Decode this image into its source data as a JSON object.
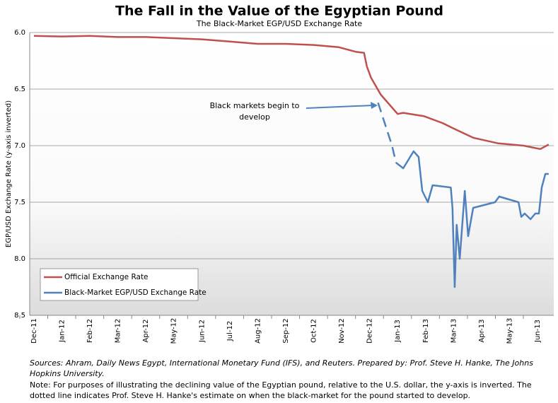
{
  "chart_data": {
    "type": "line",
    "title": "The Fall in the Value of the Egyptian Pound",
    "subtitle": "The Black-Market EGP/USD Exchange Rate",
    "y_label": "EGP/USD Exchange Rate (y-axis inverted)",
    "y_inverted": true,
    "grid": true,
    "ylim": [
      6.0,
      8.5
    ],
    "yticks": [
      {
        "value": 6.0,
        "label": "6.0"
      },
      {
        "value": 6.5,
        "label": "6.5"
      },
      {
        "value": 7.0,
        "label": "7.0"
      },
      {
        "value": 7.5,
        "label": "7.5"
      },
      {
        "value": 8.0,
        "label": "8.0"
      },
      {
        "value": 8.5,
        "label": "8.5"
      }
    ],
    "xlim": [
      -0.15,
      18.58
    ],
    "xticks": [
      {
        "value": 0,
        "label": "Dec-11"
      },
      {
        "value": 1,
        "label": "Jan-12"
      },
      {
        "value": 2,
        "label": "Feb-12"
      },
      {
        "value": 3,
        "label": "Mar-12"
      },
      {
        "value": 4,
        "label": "Apr-12"
      },
      {
        "value": 5,
        "label": "May-12"
      },
      {
        "value": 6,
        "label": "Jun-12"
      },
      {
        "value": 7,
        "label": "Jul-12"
      },
      {
        "value": 8,
        "label": "Aug-12"
      },
      {
        "value": 9,
        "label": "Sep-12"
      },
      {
        "value": 10,
        "label": "Oct-12"
      },
      {
        "value": 11,
        "label": "Nov-12"
      },
      {
        "value": 12,
        "label": "Dec-12"
      },
      {
        "value": 13,
        "label": "Jan-13"
      },
      {
        "value": 14,
        "label": "Feb-13"
      },
      {
        "value": 15,
        "label": "Mar-13"
      },
      {
        "value": 16,
        "label": "Apr-13"
      },
      {
        "value": 17,
        "label": "May-13"
      },
      {
        "value": 18,
        "label": "Jun-13"
      }
    ],
    "legend": "lower-left",
    "series": [
      {
        "name": "Official Exchange Rate",
        "color": "#c0504d",
        "x": [
          0,
          1,
          2,
          3,
          4,
          5,
          6,
          7,
          8,
          9,
          10,
          10.9,
          11.5,
          11.8,
          11.9,
          12.05,
          12.4,
          13.0,
          13.2,
          13.95,
          14.6,
          15.1,
          15.7,
          16.6,
          17.5,
          18.1,
          18.4
        ],
        "values": [
          6.03,
          6.035,
          6.03,
          6.04,
          6.04,
          6.05,
          6.06,
          6.08,
          6.1,
          6.1,
          6.11,
          6.13,
          6.17,
          6.18,
          6.3,
          6.4,
          6.55,
          6.72,
          6.71,
          6.74,
          6.8,
          6.86,
          6.93,
          6.98,
          7.0,
          7.03,
          6.99
        ]
      },
      {
        "name": "Black-Market EGP/USD Exchange Rate",
        "color": "#4f81bd",
        "dashed_first": 3,
        "x": [
          12.3,
          12.8,
          12.94,
          13.2,
          13.57,
          13.75,
          13.88,
          14.08,
          14.25,
          14.9,
          14.96,
          15.04,
          15.11,
          15.22,
          15.4,
          15.52,
          15.7,
          16.48,
          16.63,
          17.32,
          17.42,
          17.54,
          17.75,
          17.92,
          18.05,
          18.15,
          18.28,
          18.4
        ],
        "values": [
          6.62,
          7.0,
          7.15,
          7.2,
          7.05,
          7.1,
          7.4,
          7.5,
          7.35,
          7.37,
          7.55,
          8.25,
          7.7,
          8.0,
          7.4,
          7.8,
          7.55,
          7.5,
          7.45,
          7.5,
          7.63,
          7.6,
          7.65,
          7.6,
          7.6,
          7.37,
          7.25,
          7.25
        ]
      }
    ],
    "annotation": "Black markets begin to develop",
    "sources": "Sources: Ahram, Daily News Egypt, International Monetary Fund  (IFS), and Reuters. Prepared by: Prof. Steve H. Hanke, The Johns Hopkins University.",
    "note": "Note: For purposes of illustrating the declining value of the Egyptian pound, relative to the U.S. dollar, the y-axis is inverted. The dotted line indicates Prof. Steve H. Hanke's estimate on when the black-market for the pound started to develop."
  }
}
